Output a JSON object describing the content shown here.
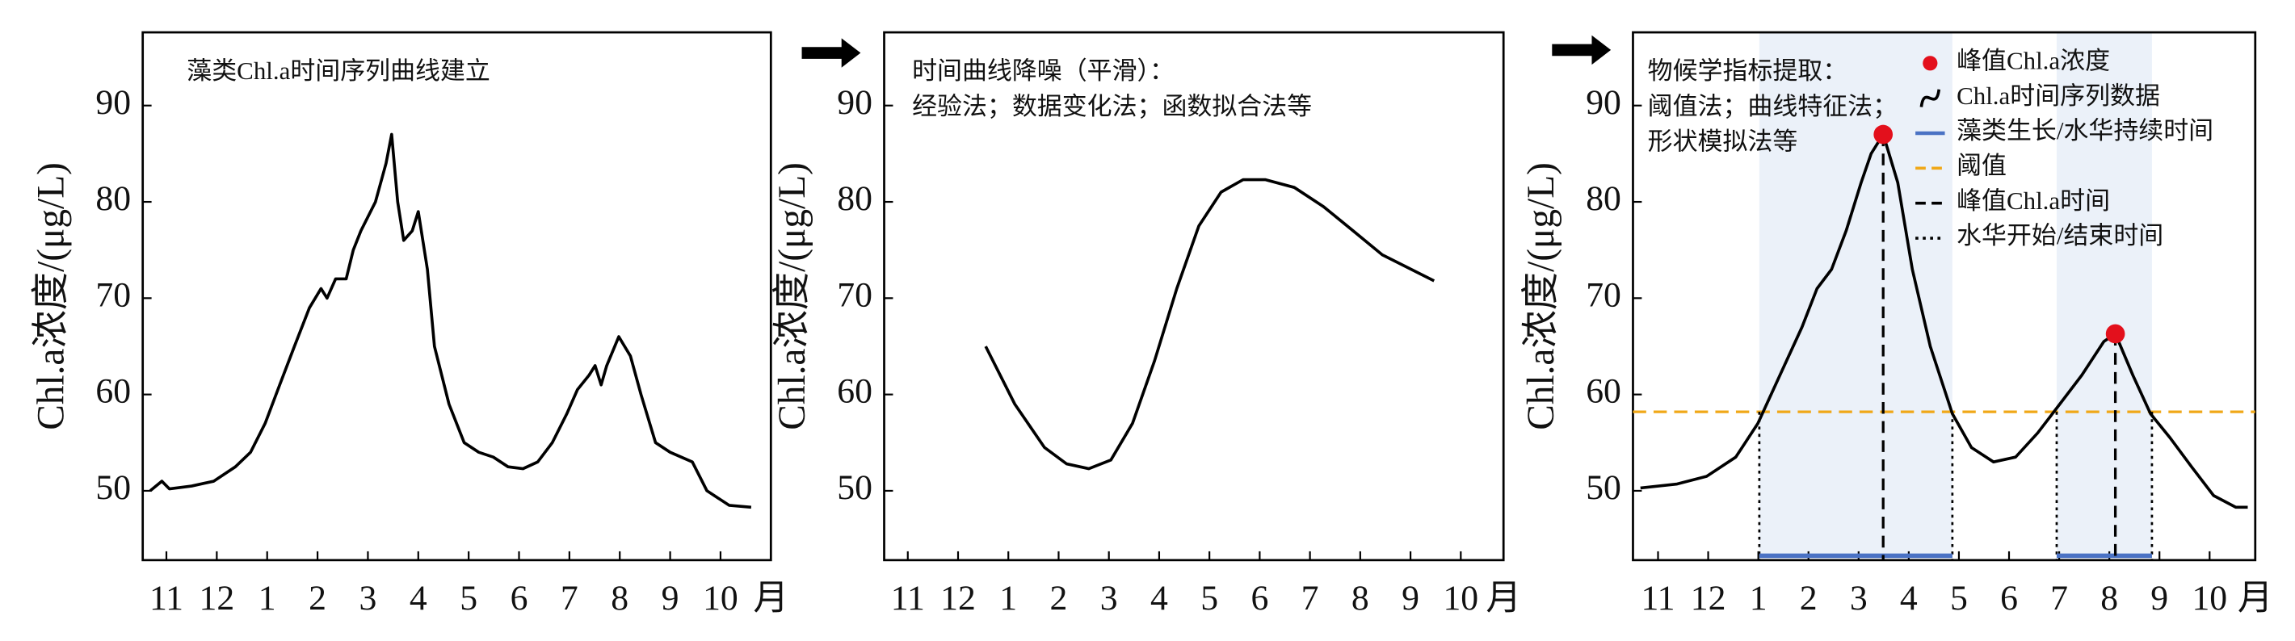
{
  "chart_data": [
    {
      "type": "line",
      "annotation": [
        "藻类Chl.a时间序列曲线建立"
      ],
      "ylabel": "Chl.a浓度/(μg/L)",
      "xunit": "月",
      "xlim": [
        -0.47,
        12.0
      ],
      "ylim": [
        42.8,
        97.6
      ],
      "xticks": [
        {
          "value": 0,
          "label": "11"
        },
        {
          "value": 1,
          "label": "12"
        },
        {
          "value": 2,
          "label": "1"
        },
        {
          "value": 3,
          "label": "2"
        },
        {
          "value": 4,
          "label": "3"
        },
        {
          "value": 5,
          "label": "4"
        },
        {
          "value": 6,
          "label": "5"
        },
        {
          "value": 7,
          "label": "6"
        },
        {
          "value": 8,
          "label": "7"
        },
        {
          "value": 9,
          "label": "8"
        },
        {
          "value": 10,
          "label": "9"
        },
        {
          "value": 11,
          "label": "10"
        }
      ],
      "yticks": [
        50,
        60,
        70,
        80,
        90
      ],
      "series": [
        {
          "color": "#000000",
          "x": [
            -0.32,
            -0.09,
            0.06,
            0.5,
            0.94,
            1.37,
            1.67,
            1.96,
            2.25,
            2.54,
            2.84,
            3.07,
            3.19,
            3.36,
            3.57,
            3.71,
            3.86,
            4.15,
            4.36,
            4.47,
            4.59,
            4.71,
            4.88,
            5.0,
            5.18,
            5.32,
            5.61,
            5.91,
            6.2,
            6.49,
            6.78,
            7.08,
            7.37,
            7.66,
            7.95,
            8.16,
            8.39,
            8.51,
            8.63,
            8.74,
            8.98,
            9.21,
            9.42,
            9.71,
            10.0,
            10.44,
            10.73,
            11.17,
            11.61
          ],
          "values": [
            50,
            51,
            50.2,
            50.5,
            51,
            52.5,
            54,
            57,
            61,
            65,
            69,
            71,
            70,
            72,
            72,
            75,
            77,
            80,
            84,
            87,
            80,
            76,
            77,
            79,
            73,
            65,
            59,
            55,
            54,
            53.5,
            52.5,
            52.3,
            53,
            55,
            58,
            60.5,
            62,
            63,
            61,
            63,
            66,
            64,
            60,
            55,
            54,
            53,
            50,
            48.5,
            48.3
          ]
        }
      ]
    },
    {
      "type": "line",
      "annotation": [
        "时间曲线降噪（平滑）：",
        "经验法；数据变化法；函数拟合法等"
      ],
      "ylabel": "Chl.a浓度/(μg/L)",
      "xunit": "月",
      "xlim": [
        -0.47,
        11.85
      ],
      "ylim": [
        42.8,
        97.6
      ],
      "xticks": [
        {
          "value": 0,
          "label": "11"
        },
        {
          "value": 1,
          "label": "12"
        },
        {
          "value": 2,
          "label": "1"
        },
        {
          "value": 3,
          "label": "2"
        },
        {
          "value": 4,
          "label": "3"
        },
        {
          "value": 5,
          "label": "4"
        },
        {
          "value": 6,
          "label": "5"
        },
        {
          "value": 7,
          "label": "6"
        },
        {
          "value": 8,
          "label": "7"
        },
        {
          "value": 9,
          "label": "8"
        },
        {
          "value": 10,
          "label": "9"
        },
        {
          "value": 11,
          "label": "10"
        }
      ],
      "yticks": [
        50,
        60,
        70,
        80,
        90
      ],
      "series": [
        {
          "color": "#000000",
          "x": [
            1.55,
            2.13,
            2.72,
            3.16,
            3.6,
            4.04,
            4.47,
            4.91,
            5.35,
            5.79,
            6.23,
            6.67,
            7.11,
            7.69,
            8.27,
            8.86,
            9.44,
            10.47
          ],
          "values": [
            65,
            59,
            54.5,
            52.8,
            52.3,
            53.2,
            57,
            63.5,
            71,
            77.5,
            81,
            82.3,
            82.3,
            81.5,
            79.5,
            77,
            74.5,
            71.8
          ]
        }
      ]
    },
    {
      "type": "line",
      "annotation": [
        "物候学指标提取：",
        "阈值法；曲线特征法；",
        "形状模拟法等"
      ],
      "ylabel": "Chl.a浓度/(μg/L)",
      "xunit": "月",
      "xlim": [
        -0.5,
        11.91
      ],
      "ylim": [
        42.8,
        97.6
      ],
      "xticks": [
        {
          "value": 0,
          "label": "11"
        },
        {
          "value": 1,
          "label": "12"
        },
        {
          "value": 2,
          "label": "1"
        },
        {
          "value": 3,
          "label": "2"
        },
        {
          "value": 4,
          "label": "3"
        },
        {
          "value": 5,
          "label": "4"
        },
        {
          "value": 6,
          "label": "5"
        },
        {
          "value": 7,
          "label": "6"
        },
        {
          "value": 8,
          "label": "7"
        },
        {
          "value": 9,
          "label": "8"
        },
        {
          "value": 10,
          "label": "9"
        },
        {
          "value": 11,
          "label": "10"
        }
      ],
      "yticks": [
        50,
        60,
        70,
        80,
        90
      ],
      "peaks": {
        "name": "峰值Chl.a浓度",
        "color": "#e3101c",
        "x": [
          4.49,
          9.12
        ],
        "values": [
          87,
          66.3
        ]
      },
      "series": [
        {
          "name": "Chl.a时间序列数据",
          "color": "#000000",
          "x": [
            -0.35,
            0.38,
            0.97,
            1.55,
            1.99,
            2.43,
            2.87,
            3.17,
            3.46,
            3.75,
            4.05,
            4.25,
            4.49,
            4.78,
            5.07,
            5.43,
            5.87,
            6.25,
            6.69,
            7.13,
            7.57,
            8.01,
            8.45,
            8.89,
            9.12,
            9.47,
            9.82,
            10.21,
            10.64,
            11.08,
            11.52,
            11.76
          ],
          "values": [
            50.3,
            50.7,
            51.5,
            53.5,
            57,
            62,
            67,
            71,
            73,
            77,
            82,
            85,
            87,
            82,
            73,
            65,
            58,
            54.5,
            53,
            53.5,
            56,
            59,
            62,
            65.5,
            66.3,
            62,
            58,
            55.5,
            52.5,
            49.5,
            48.3,
            48.3
          ]
        }
      ],
      "durations": {
        "name": "藻类生长/水华持续时间",
        "color": "#4a72c4",
        "starts": [
          2.02,
          7.95
        ],
        "ends": [
          5.87,
          9.85
        ]
      },
      "threshold": {
        "name": "阈值",
        "color": "#f0a818",
        "value": 58.2
      },
      "peak_time": {
        "name": "峰值Chl.a时间",
        "color": "#000000"
      },
      "boundaries": {
        "name": "水华开始/结束时间",
        "color": "#000000"
      }
    }
  ]
}
